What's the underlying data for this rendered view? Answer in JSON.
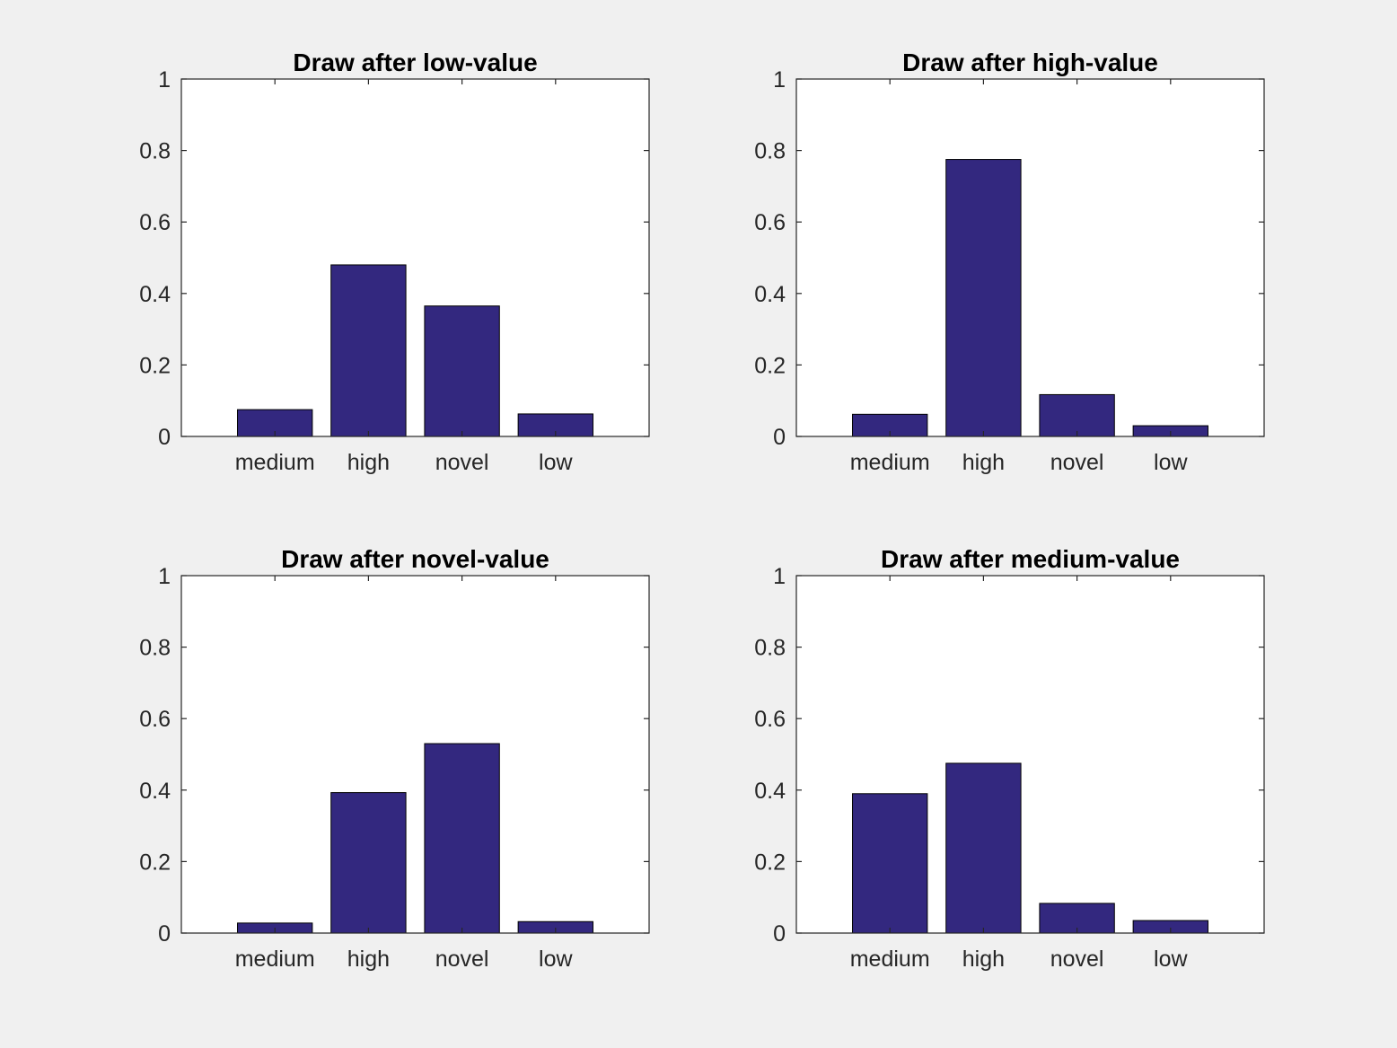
{
  "figure": {
    "background": "#f0f0f0"
  },
  "bar_color": "#33287f",
  "chart_data": [
    {
      "type": "bar",
      "title": "Draw after low-value",
      "categories": [
        "medium",
        "high",
        "novel",
        "low"
      ],
      "values": [
        0.075,
        0.48,
        0.365,
        0.063
      ],
      "ylim": [
        0,
        1
      ],
      "yticks": [
        "0",
        "0.2",
        "0.4",
        "0.6",
        "0.8",
        "1"
      ],
      "xlabel": "",
      "ylabel": "",
      "grid": false
    },
    {
      "type": "bar",
      "title": "Draw after high-value",
      "categories": [
        "medium",
        "high",
        "novel",
        "low"
      ],
      "values": [
        0.062,
        0.775,
        0.117,
        0.03
      ],
      "ylim": [
        0,
        1
      ],
      "yticks": [
        "0",
        "0.2",
        "0.4",
        "0.6",
        "0.8",
        "1"
      ],
      "xlabel": "",
      "ylabel": "",
      "grid": false
    },
    {
      "type": "bar",
      "title": "Draw after novel-value",
      "categories": [
        "medium",
        "high",
        "novel",
        "low"
      ],
      "values": [
        0.028,
        0.393,
        0.53,
        0.032
      ],
      "ylim": [
        0,
        1
      ],
      "yticks": [
        "0",
        "0.2",
        "0.4",
        "0.6",
        "0.8",
        "1"
      ],
      "xlabel": "",
      "ylabel": "",
      "grid": false
    },
    {
      "type": "bar",
      "title": "Draw after medium-value",
      "categories": [
        "medium",
        "high",
        "novel",
        "low"
      ],
      "values": [
        0.39,
        0.475,
        0.083,
        0.035
      ],
      "ylim": [
        0,
        1
      ],
      "yticks": [
        "0",
        "0.2",
        "0.4",
        "0.6",
        "0.8",
        "1"
      ],
      "xlabel": "",
      "ylabel": "",
      "grid": false
    }
  ]
}
